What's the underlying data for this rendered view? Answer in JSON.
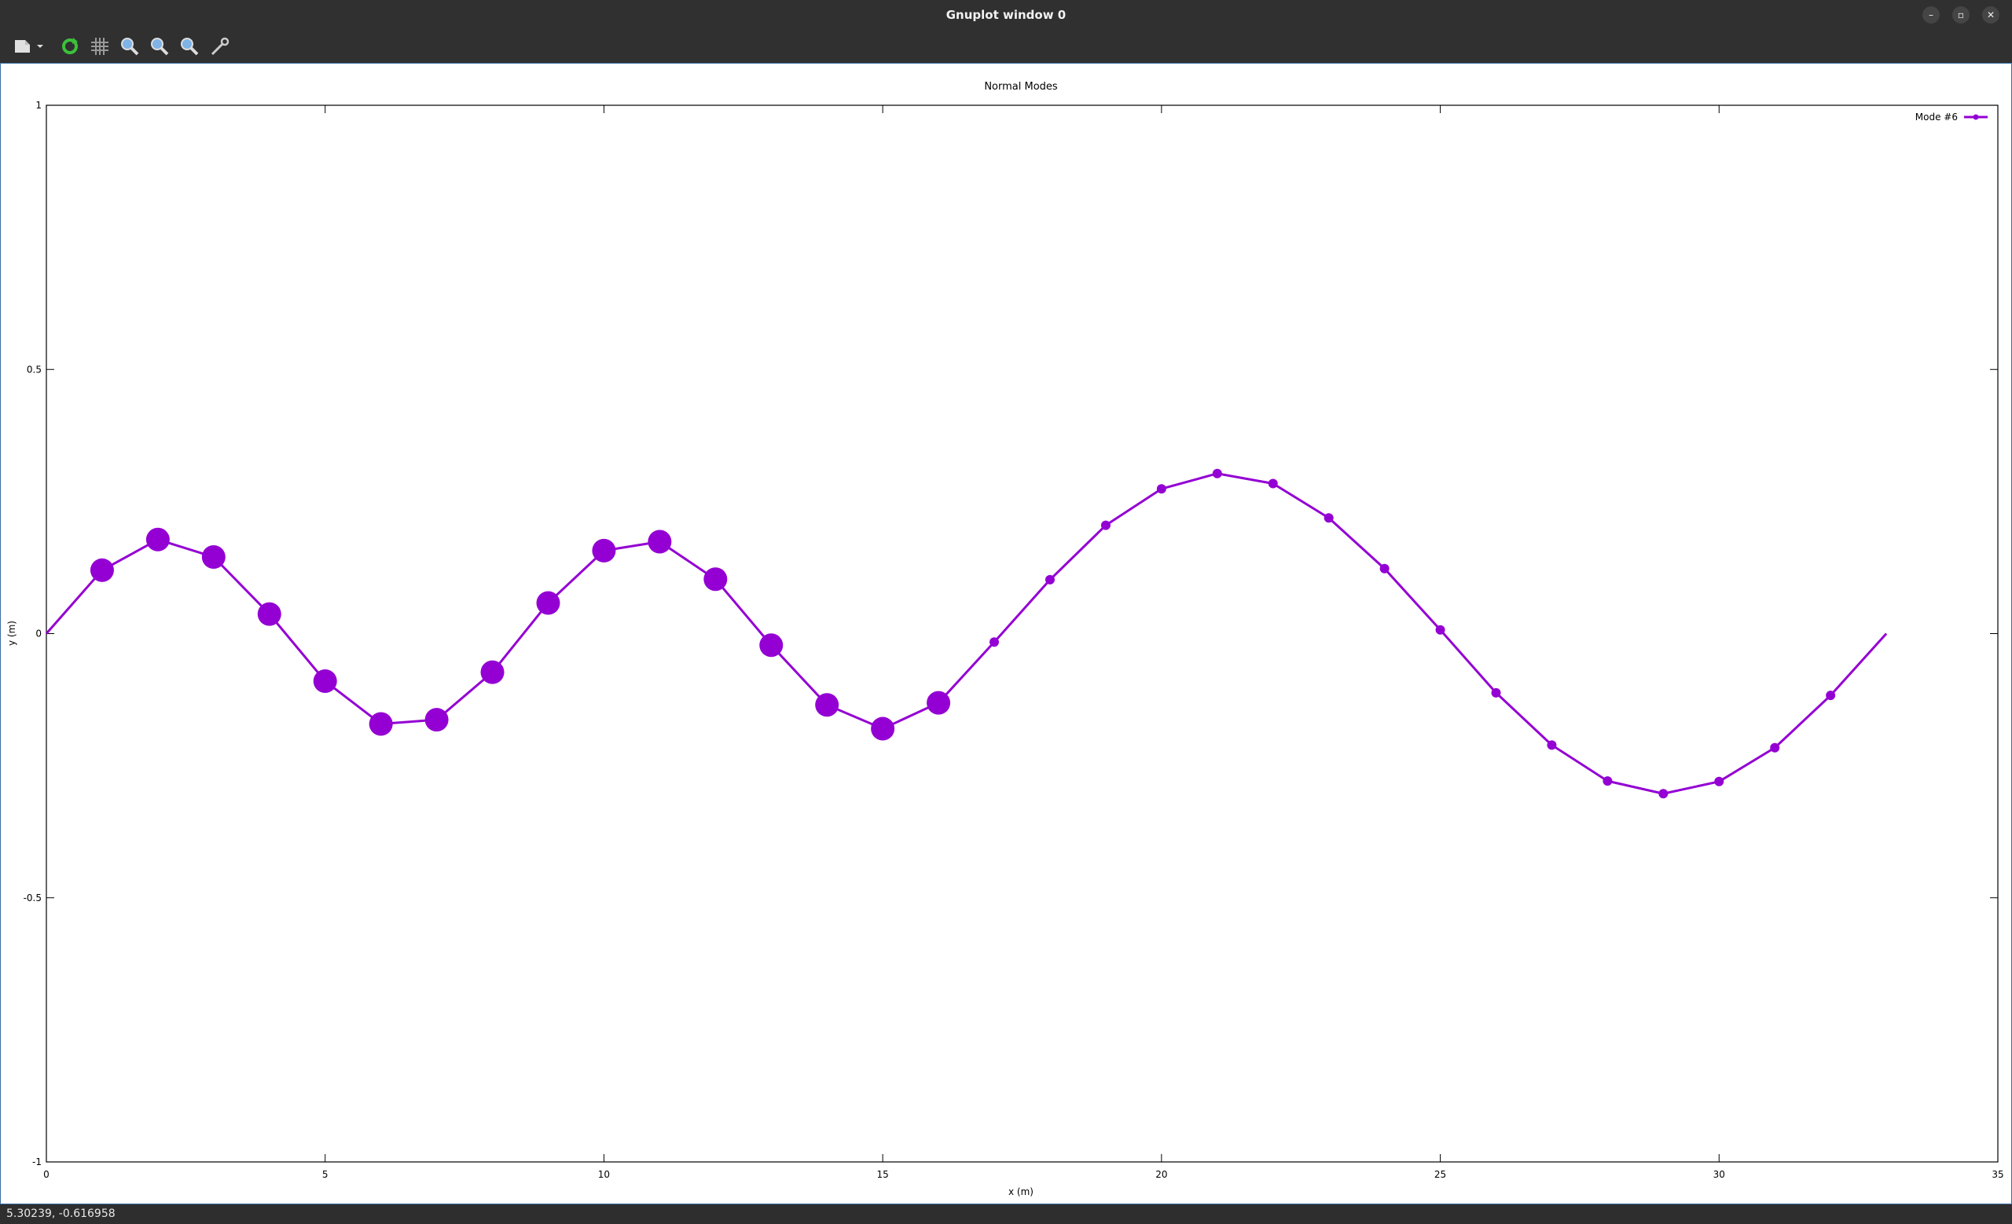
{
  "window": {
    "title": "Gnuplot window 0",
    "minimize_glyph": "–",
    "maximize_glyph": "▫",
    "close_glyph": "✕"
  },
  "toolbar": {
    "icons": [
      "export-icon",
      "export-dropdown-icon",
      "replot-icon",
      "grid-icon",
      "zoom-previous-icon",
      "zoom-next-icon",
      "autoscale-icon",
      "settings-icon"
    ]
  },
  "status": {
    "coordinates": "5.30239, -0.616958"
  },
  "colors": {
    "series": "#9400d3"
  },
  "chart_data": {
    "type": "line",
    "title": "Normal Modes",
    "xlabel": "x (m)",
    "ylabel": "y (m)",
    "xlim": [
      0,
      35
    ],
    "ylim": [
      -1,
      1
    ],
    "xticks": [
      "0",
      "5",
      "10",
      "15",
      "20",
      "25",
      "30",
      "35"
    ],
    "yticks": [
      "1",
      "0.5",
      "0",
      "-0.5",
      "-1"
    ],
    "grid": false,
    "legend_position": "top-right",
    "series": [
      {
        "name": "Mode #6",
        "color": "#9400d3",
        "x": [
          0,
          1,
          2,
          3,
          4,
          5,
          6,
          7,
          8,
          9,
          10,
          11,
          12,
          13,
          14,
          15,
          16,
          17,
          18,
          19,
          20,
          21,
          22,
          23,
          24,
          25,
          26,
          27,
          28,
          29,
          30,
          31,
          32,
          33
        ],
        "y": [
          0,
          0.12,
          0.178,
          0.145,
          0.037,
          -0.09,
          -0.171,
          -0.163,
          -0.073,
          0.058,
          0.157,
          0.174,
          0.103,
          -0.022,
          -0.135,
          -0.18,
          -0.131,
          -0.016,
          0.102,
          0.205,
          0.274,
          0.303,
          0.284,
          0.219,
          0.123,
          0.007,
          -0.112,
          -0.211,
          -0.279,
          -0.303,
          -0.28,
          -0.216,
          -0.117,
          0
        ],
        "large_marker_count": 17
      }
    ]
  }
}
